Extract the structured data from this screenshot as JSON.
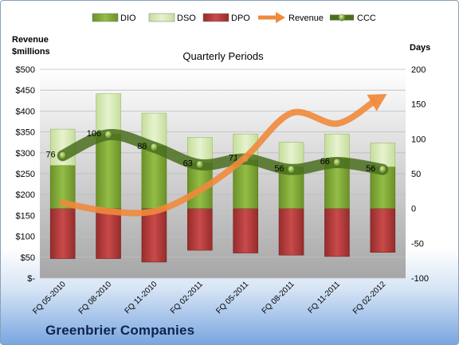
{
  "chart_data": {
    "type": "bar",
    "title": "Quarterly Periods",
    "company": "Greenbrier Companies",
    "categories": [
      "FQ 05-2010",
      "FQ 08-2010",
      "FQ 11-2010",
      "FQ 02-2011",
      "FQ 05-2011",
      "FQ 08-2011",
      "FQ 11-2011",
      "FQ 02-2012"
    ],
    "left_axis": {
      "label": "Revenue\n$millions",
      "range": [
        0,
        500
      ],
      "ticks": [
        {
          "v": 0,
          "t": "$-"
        },
        {
          "v": 50,
          "t": "$50"
        },
        {
          "v": 100,
          "t": "$100"
        },
        {
          "v": 150,
          "t": "$150"
        },
        {
          "v": 200,
          "t": "$200"
        },
        {
          "v": 250,
          "t": "$250"
        },
        {
          "v": 300,
          "t": "$300"
        },
        {
          "v": 350,
          "t": "$350"
        },
        {
          "v": 400,
          "t": "$400"
        },
        {
          "v": 450,
          "t": "$450"
        },
        {
          "v": 500,
          "t": "$500"
        }
      ]
    },
    "right_axis": {
      "label": "Days",
      "range": [
        -100,
        200
      ],
      "ticks": [
        {
          "v": -100,
          "t": "-100"
        },
        {
          "v": -50,
          "t": "-50"
        },
        {
          "v": 0,
          "t": "0"
        },
        {
          "v": 50,
          "t": "50"
        },
        {
          "v": 100,
          "t": "100"
        },
        {
          "v": 150,
          "t": "150"
        },
        {
          "v": 200,
          "t": "200"
        }
      ]
    },
    "series": [
      {
        "name": "DIO",
        "axis": "right",
        "values": [
          62,
          107,
          90,
          66,
          70,
          60,
          72,
          60
        ]
      },
      {
        "name": "DSO",
        "axis": "right",
        "values": [
          52,
          58,
          47,
          36,
          37,
          35,
          35,
          34
        ]
      },
      {
        "name": "DPO",
        "axis": "right",
        "values": [
          -72,
          -72,
          -77,
          -60,
          -64,
          -67,
          -69,
          -63
        ]
      },
      {
        "name": "Revenue",
        "axis": "left",
        "values": [
          180,
          160,
          160,
          210,
          290,
          395,
          370,
          435
        ]
      },
      {
        "name": "CCC",
        "axis": "right",
        "values": [
          76,
          106,
          88,
          63,
          71,
          56,
          66,
          56
        ],
        "labels": [
          "76",
          "106",
          "88",
          "63",
          "71",
          "56",
          "66",
          "56"
        ]
      }
    ],
    "colors": {
      "DIO": "#7fa832",
      "DSO": "#d6eab0",
      "DPO": "#b23a3a",
      "Revenue": "#f08a3c",
      "CCC": "#4a6e1e"
    },
    "legend_position": "top"
  }
}
